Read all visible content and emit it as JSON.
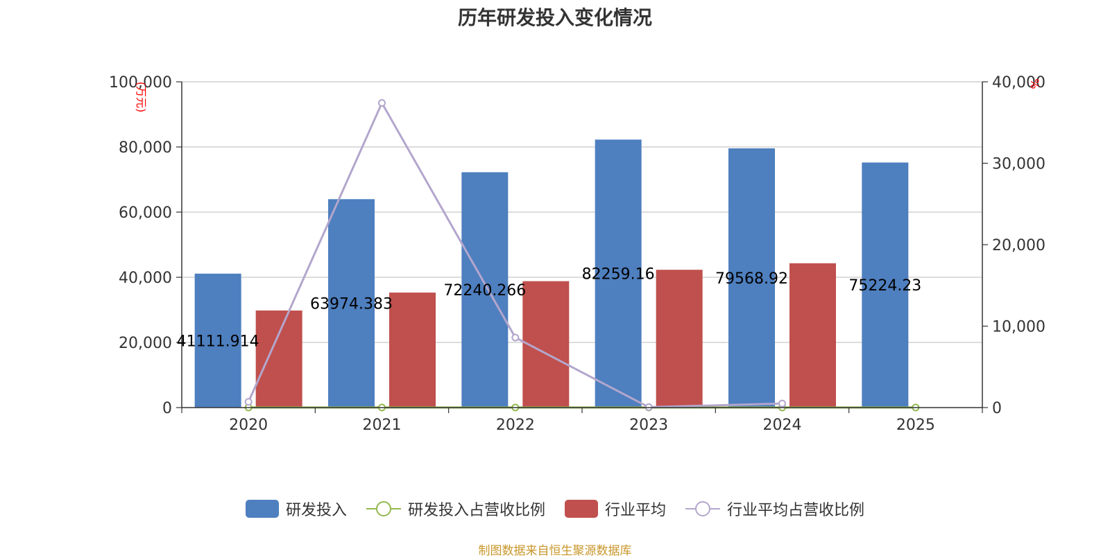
{
  "title": "历年研发投入变化情况",
  "source": "制图数据来自恒生聚源数据库",
  "chart_data": {
    "type": "bar",
    "title": "历年研发投入变化情况",
    "categories": [
      "2020",
      "2021",
      "2022",
      "2023",
      "2024",
      "2025"
    ],
    "y_left": {
      "unit": "(万元)",
      "ylim": [
        0,
        100000
      ],
      "ticks": [
        "0",
        "20,000",
        "40,000",
        "60,000",
        "80,000",
        "100,000"
      ]
    },
    "y_right": {
      "unit": "%",
      "ylim": [
        0,
        40000
      ],
      "ticks": [
        "0",
        "10,000",
        "20,000",
        "30,000",
        "40,000"
      ]
    },
    "series": [
      {
        "name": "研发投入",
        "type": "bar",
        "axis": "left",
        "color": "#4e7fbf",
        "values": [
          41111.914,
          63974.383,
          72240.266,
          82259.16,
          79568.92,
          75224.23
        ],
        "labels": [
          "41111.914",
          "63974.383",
          "72240.266",
          "82259.16",
          "79568.92",
          "75224.23"
        ]
      },
      {
        "name": "研发投入占营收比例",
        "type": "line",
        "axis": "right",
        "color": "#93b84f",
        "values": [
          8,
          8,
          8,
          8,
          8,
          8
        ]
      },
      {
        "name": "行业平均",
        "type": "bar",
        "axis": "left",
        "color": "#c0504d",
        "values": [
          29800,
          35300,
          38800,
          42300,
          44300,
          null
        ]
      },
      {
        "name": "行业平均占营收比例",
        "type": "line",
        "axis": "right",
        "color": "#b3a6cc",
        "values": [
          700,
          37400,
          8600,
          50,
          500,
          null
        ]
      }
    ],
    "grid": true,
    "legend": "bottom"
  }
}
